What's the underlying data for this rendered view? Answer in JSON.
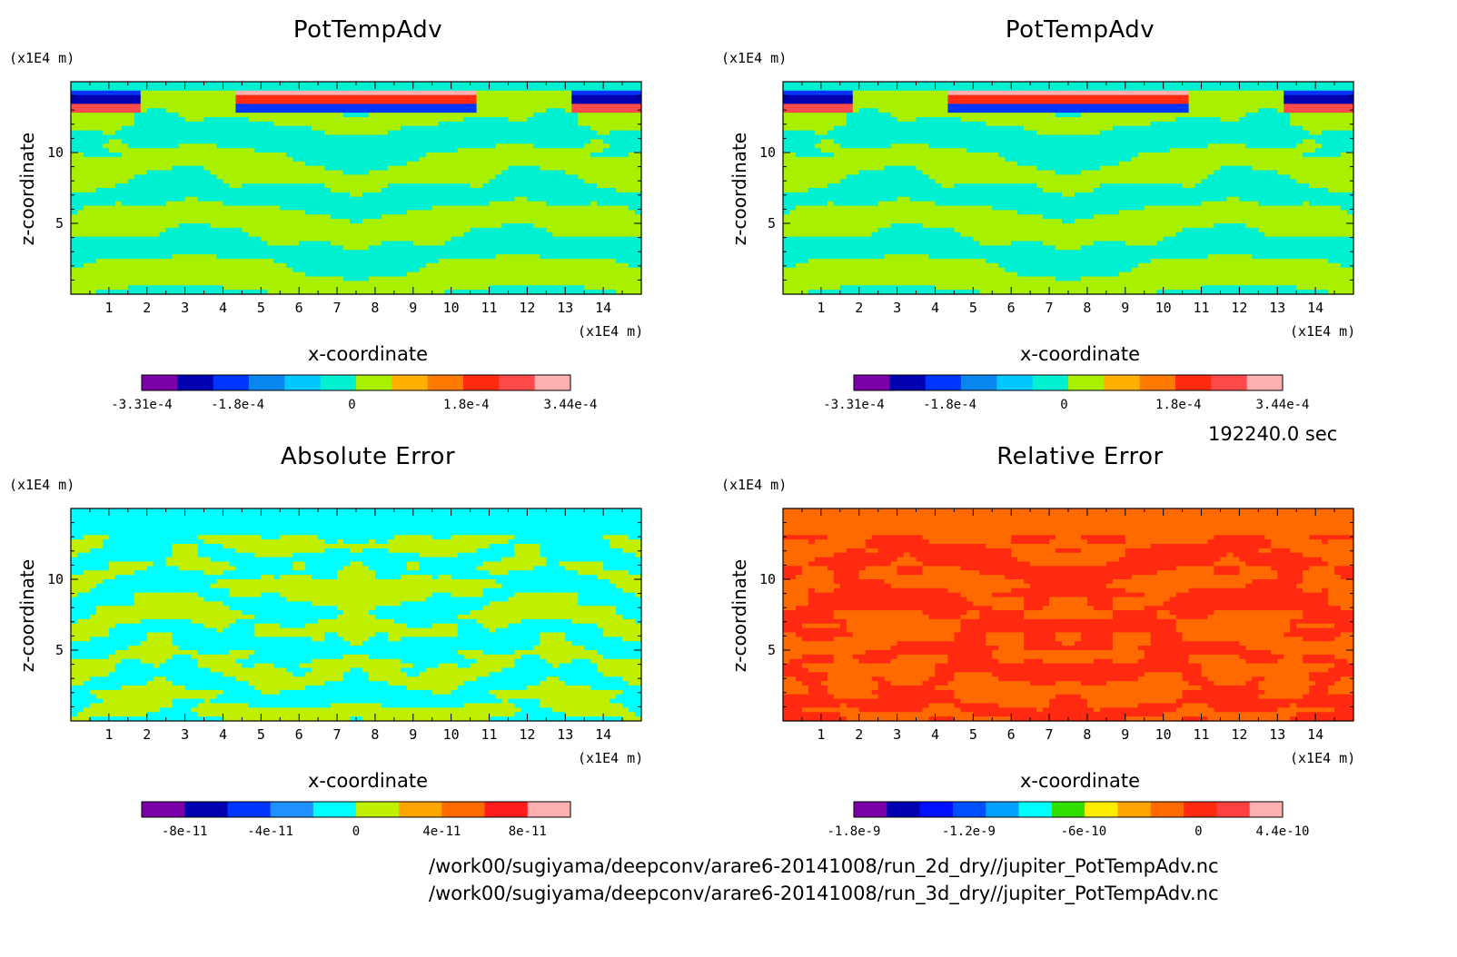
{
  "time_label": "192240.0 sec",
  "paths": [
    "/work00/sugiyama/deepconv/arare6-20141008/run_2d_dry//jupiter_PotTempAdv.nc",
    "/work00/sugiyama/deepconv/arare6-20141008/run_3d_dry//jupiter_PotTempAdv.nc"
  ],
  "colors": {
    "rainbow11": [
      "#7b00a8",
      "#0000b0",
      "#0034ff",
      "#0a86ef",
      "#00c8ff",
      "#00f0d2",
      "#a8f000",
      "#ffb000",
      "#ff7a00",
      "#ff2a10",
      "#ff4a4a",
      "#ffb0b0"
    ],
    "abs10": [
      "#7b00a8",
      "#0000b0",
      "#0034ff",
      "#1e90ff",
      "#00ffff",
      "#c0f000",
      "#ffa500",
      "#ff6a00",
      "#ff1e1e",
      "#ffb0b0"
    ],
    "rel13": [
      "#7b00a8",
      "#0000b0",
      "#0010ff",
      "#0050ff",
      "#00a0ff",
      "#00ffff",
      "#32e000",
      "#ffee00",
      "#ffa500",
      "#ff6a00",
      "#ff2a10",
      "#ff4040",
      "#ffb0b0"
    ]
  },
  "chart_data": [
    {
      "type": "heatmap",
      "title": "PotTempAdv",
      "xlabel": "x-coordinate",
      "ylabel": "z-coordinate",
      "x_unit": "(x1E4 m)",
      "y_unit": "(x1E4 m)",
      "xlim": [
        0,
        15
      ],
      "ylim": [
        0,
        15
      ],
      "xticks": [
        "1",
        "2",
        "3",
        "4",
        "5",
        "6",
        "7",
        "8",
        "9",
        "10",
        "11",
        "12",
        "13",
        "14"
      ],
      "yticks": [
        "5",
        "10"
      ],
      "colorbar": {
        "min": -0.000331,
        "max": 0.000344,
        "labels": [
          "-3.31e-4",
          "-1.8e-4",
          "0",
          "1.8e-4",
          "3.44e-4"
        ],
        "n_levels": 12
      }
    },
    {
      "type": "heatmap",
      "title": "PotTempAdv",
      "xlabel": "x-coordinate",
      "ylabel": "z-coordinate",
      "x_unit": "(x1E4 m)",
      "y_unit": "(x1E4 m)",
      "xlim": [
        0,
        15
      ],
      "ylim": [
        0,
        15
      ],
      "xticks": [
        "1",
        "2",
        "3",
        "4",
        "5",
        "6",
        "7",
        "8",
        "9",
        "10",
        "11",
        "12",
        "13",
        "14"
      ],
      "yticks": [
        "5",
        "10"
      ],
      "colorbar": {
        "min": -0.000331,
        "max": 0.000344,
        "labels": [
          "-3.31e-4",
          "-1.8e-4",
          "0",
          "1.8e-4",
          "3.44e-4"
        ],
        "n_levels": 12
      }
    },
    {
      "type": "heatmap",
      "title": "Absolute Error",
      "xlabel": "x-coordinate",
      "ylabel": "z-coordinate",
      "x_unit": "(x1E4 m)",
      "y_unit": "(x1E4 m)",
      "xlim": [
        0,
        15
      ],
      "ylim": [
        0,
        15
      ],
      "xticks": [
        "1",
        "2",
        "3",
        "4",
        "5",
        "6",
        "7",
        "8",
        "9",
        "10",
        "11",
        "12",
        "13",
        "14"
      ],
      "yticks": [
        "5",
        "10"
      ],
      "colorbar": {
        "min": -1e-10,
        "max": 1e-10,
        "labels": [
          "-8e-11",
          "-4e-11",
          "0",
          "4e-11",
          "8e-11"
        ],
        "n_levels": 10
      }
    },
    {
      "type": "heatmap",
      "title": "Relative Error",
      "xlabel": "x-coordinate",
      "ylabel": "z-coordinate",
      "x_unit": "(x1E4 m)",
      "y_unit": "(x1E4 m)",
      "xlim": [
        0,
        15
      ],
      "ylim": [
        0,
        15
      ],
      "xticks": [
        "1",
        "2",
        "3",
        "4",
        "5",
        "6",
        "7",
        "8",
        "9",
        "10",
        "11",
        "12",
        "13",
        "14"
      ],
      "yticks": [
        "5",
        "10"
      ],
      "colorbar": {
        "min": -1.8e-09,
        "max": 4.4e-10,
        "labels": [
          "-1.8e-9",
          "-1.2e-9",
          "-6e-10",
          "0",
          "4.4e-10"
        ],
        "n_levels": 13
      }
    }
  ]
}
